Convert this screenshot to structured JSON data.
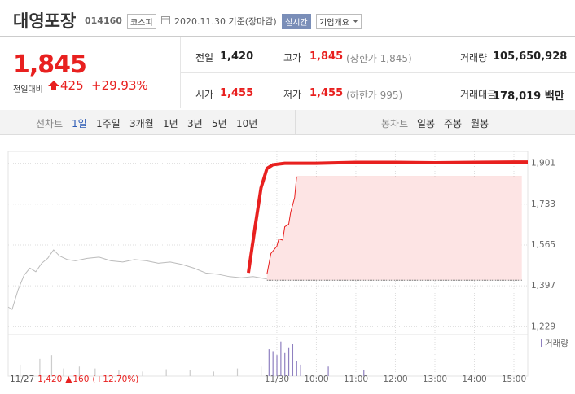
{
  "header": {
    "name": "대영포장",
    "code": "014160",
    "market": "코스피",
    "date": "2020.11.30 기준(장마감)",
    "realtime": "실시간",
    "overview": "기업개요"
  },
  "quote": {
    "price": "1,845",
    "change_label": "전일대비",
    "change": "425",
    "change_rate": "+29.93%",
    "rows": [
      [
        {
          "label": "전일",
          "value": "1,420"
        },
        {
          "label": "고가",
          "value": "1,845",
          "note": "(상한가 1,845)"
        },
        {
          "label": "거래량",
          "value": "105,650,928"
        }
      ],
      [
        {
          "label": "시가",
          "value": "1,455"
        },
        {
          "label": "저가",
          "value": "1,455",
          "note": "(하한가 995)"
        },
        {
          "label": "거래대금",
          "value": "178,019 백만"
        }
      ]
    ]
  },
  "tabs": {
    "line": {
      "label": "선차트",
      "items": [
        "1일",
        "1주일",
        "3개월",
        "1년",
        "3년",
        "5년",
        "10년"
      ]
    },
    "candle": {
      "label": "봉차트",
      "items": [
        "일봉",
        "주봉",
        "월봉"
      ]
    }
  },
  "chart_data": {
    "type": "line",
    "prev_label": {
      "date": "11/27",
      "close": "1,420",
      "change": "160",
      "rate": "(+12.70%)"
    },
    "xlim": [
      2.2,
      15.35
    ],
    "xticks": [
      {
        "value": 9,
        "label": "11/30"
      },
      {
        "value": 10,
        "label": "10:00"
      },
      {
        "value": 11,
        "label": "11:00"
      },
      {
        "value": 12,
        "label": "12:00"
      },
      {
        "value": 13,
        "label": "13:00"
      },
      {
        "value": 14,
        "label": "14:00"
      },
      {
        "value": 15,
        "label": "15:00"
      }
    ],
    "ylim": [
      1210,
      1950
    ],
    "yticks": [
      {
        "value": 1901,
        "label": "1,901"
      },
      {
        "value": 1733,
        "label": "1,733"
      },
      {
        "value": 1565,
        "label": "1,565"
      },
      {
        "value": 1397,
        "label": "1,397"
      },
      {
        "value": 1229,
        "label": "1,229"
      }
    ],
    "grid": true,
    "baseline": 1420,
    "series": [
      {
        "color": "#bbbbbb",
        "width": 1,
        "x": [
          2.2,
          2.3,
          2.45,
          2.6,
          2.75,
          2.9,
          3.05,
          3.2,
          3.35,
          3.5,
          3.7,
          3.9,
          4.2,
          4.5,
          4.8,
          5.1,
          5.4,
          5.7,
          6.0,
          6.3,
          6.6,
          6.9,
          7.2,
          7.5,
          7.8,
          8.1,
          8.4,
          8.75
        ],
        "values": [
          1310,
          1300,
          1380,
          1440,
          1470,
          1455,
          1490,
          1510,
          1545,
          1520,
          1505,
          1500,
          1510,
          1515,
          1500,
          1495,
          1505,
          1500,
          1490,
          1495,
          1485,
          1470,
          1450,
          1445,
          1435,
          1430,
          1435,
          1425
        ]
      },
      {
        "color": "#e8201f",
        "width": 4,
        "x": [
          8.28,
          8.45,
          8.6,
          8.75,
          8.9,
          9.2,
          10,
          11,
          12,
          13,
          14,
          15,
          15.35
        ],
        "values": [
          1451,
          1640,
          1800,
          1880,
          1895,
          1901,
          1901,
          1905,
          1905,
          1903,
          1905,
          1906,
          1906
        ]
      },
      {
        "color": "#e8201f",
        "width": 1,
        "fill": "#fde4e4",
        "x": [
          8.75,
          8.85,
          9.0,
          9.05,
          9.15,
          9.2,
          9.3,
          9.35,
          9.45,
          9.5,
          15.2
        ],
        "values": [
          1445,
          1530,
          1560,
          1590,
          1585,
          1640,
          1650,
          1700,
          1760,
          1845,
          1845
        ]
      }
    ],
    "volume": {
      "label": "거래량",
      "ylim": [
        0,
        100
      ],
      "colors": [
        "#cccccc",
        "#8f80c0"
      ],
      "x": [
        2.5,
        3.0,
        3.3,
        3.6,
        4.0,
        4.4,
        5.0,
        5.6,
        6.2,
        6.8,
        7.4,
        8.0,
        8.6,
        8.8,
        8.9,
        9.0,
        9.1,
        9.2,
        9.3,
        9.4,
        9.5,
        9.6,
        10.3,
        11.2
      ],
      "values": [
        30,
        45,
        55,
        20,
        25,
        20,
        15,
        12,
        18,
        15,
        12,
        20,
        25,
        70,
        65,
        55,
        90,
        60,
        75,
        85,
        40,
        30,
        25,
        15
      ]
    }
  }
}
